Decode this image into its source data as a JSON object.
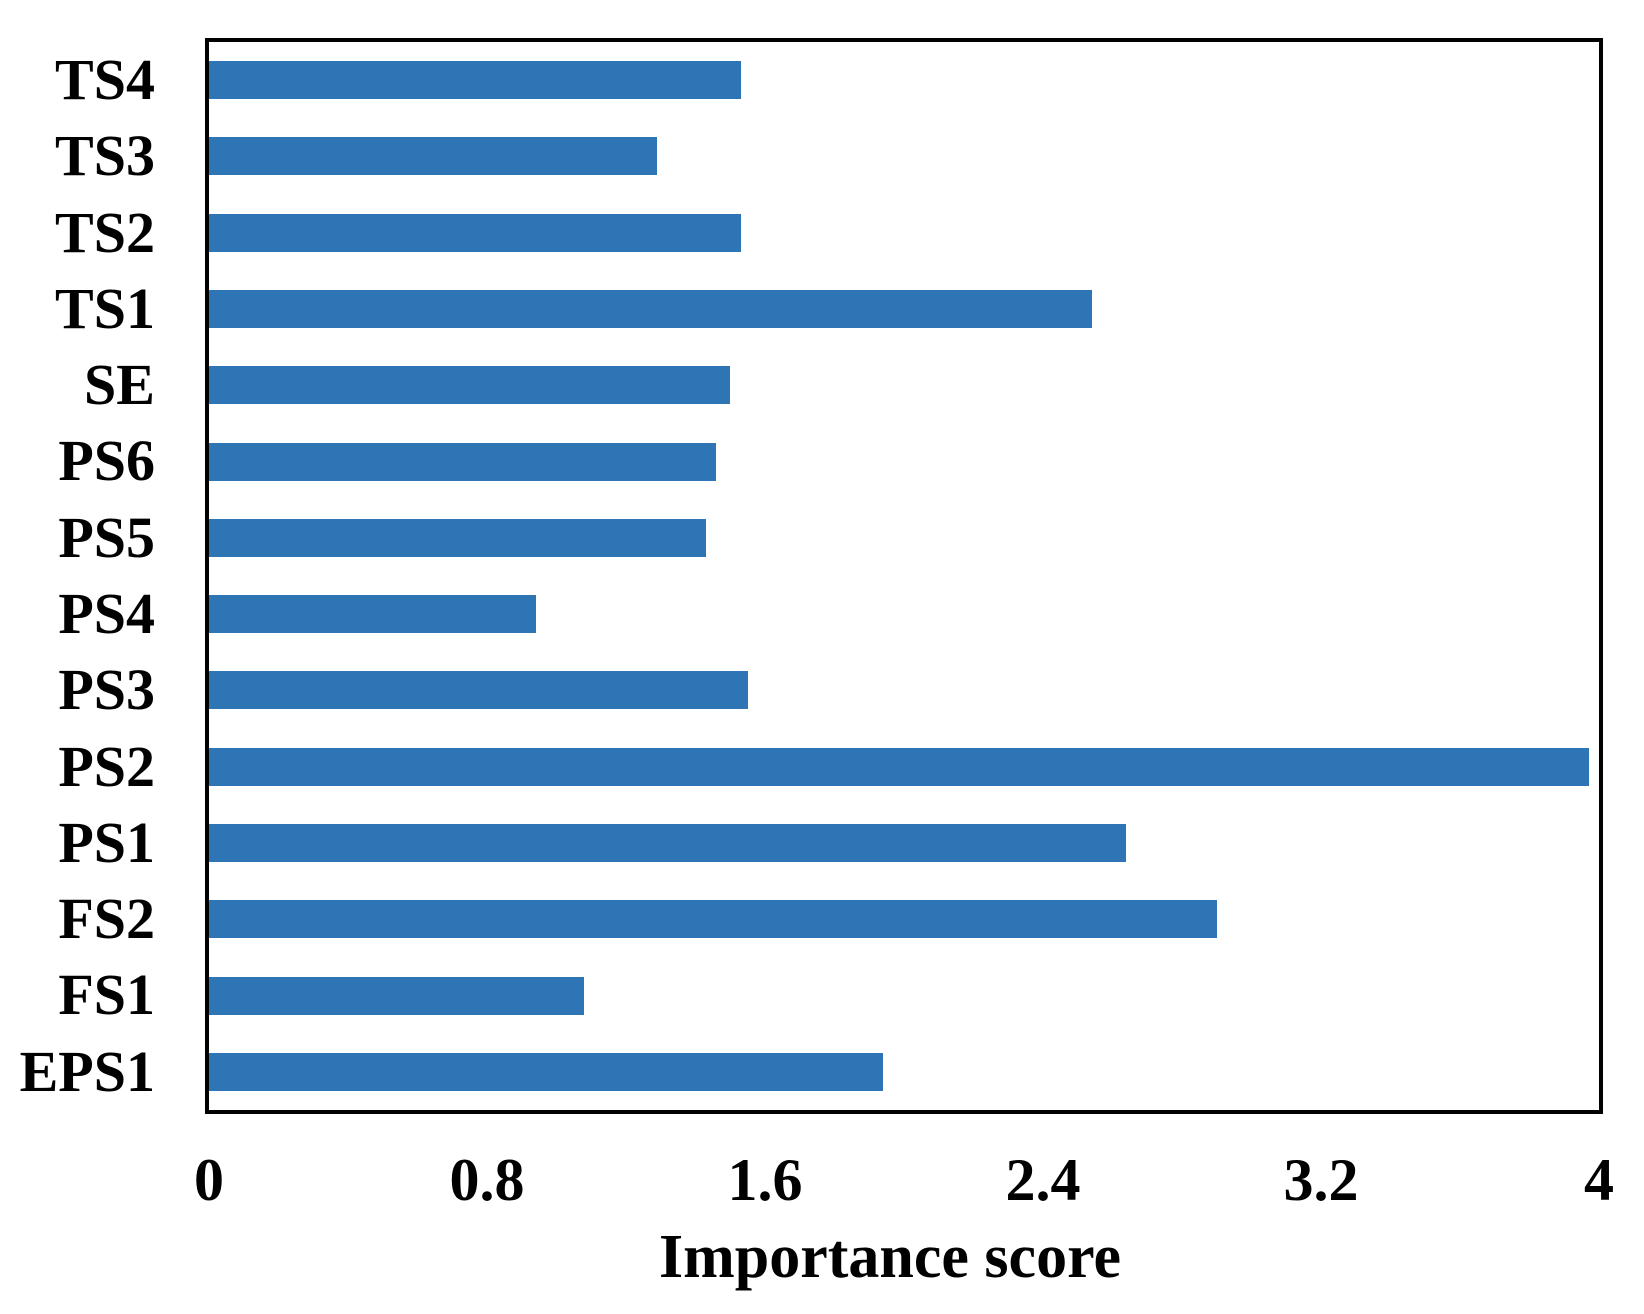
{
  "chart_data": {
    "type": "bar",
    "orientation": "horizontal",
    "title": "",
    "xlabel": "Importance score",
    "ylabel": "",
    "categories": [
      "TS4",
      "TS3",
      "TS2",
      "TS1",
      "SE",
      "PS6",
      "PS5",
      "PS4",
      "PS3",
      "PS2",
      "PS1",
      "FS2",
      "FS1",
      "EPS1"
    ],
    "values": [
      1.53,
      1.29,
      1.53,
      2.54,
      1.5,
      1.46,
      1.43,
      0.94,
      1.55,
      3.97,
      2.64,
      2.9,
      1.08,
      1.94
    ],
    "xlim": [
      0,
      4
    ],
    "xticks": [
      0,
      0.8,
      1.6,
      2.4,
      3.2,
      4
    ],
    "xtick_labels": [
      "0",
      "0.8",
      "1.6",
      "2.4",
      "3.2",
      "4"
    ],
    "grid": false,
    "legend": false,
    "bar_color": "#2E75B5",
    "frame_color": "#000000",
    "background_color": "#FFFFFF"
  }
}
